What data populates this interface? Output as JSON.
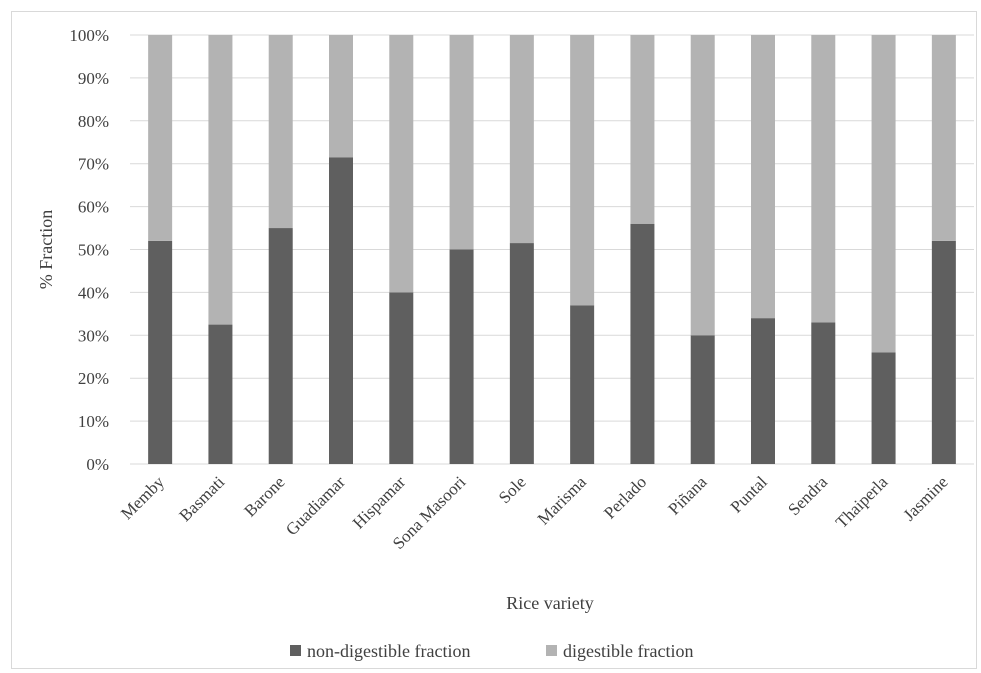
{
  "chart_data": {
    "type": "bar",
    "stacked": true,
    "normalized": true,
    "categories": [
      "Memby",
      "Basmati",
      "Barone",
      "Guadiamar",
      "Hispamar",
      "Sona Masoori",
      "Sole",
      "Marisma",
      "Perlado",
      "Piñana",
      "Puntal",
      "Sendra",
      "Thaiperla",
      "Jasmine"
    ],
    "series": [
      {
        "name": "non-digestible fraction",
        "color": "#5f5f5f",
        "values": [
          52,
          32.5,
          55,
          71.5,
          40,
          50,
          51.5,
          37,
          56,
          30,
          34,
          33,
          26,
          52
        ]
      },
      {
        "name": "digestible fraction",
        "color": "#b3b3b3",
        "values": [
          48,
          67.5,
          45,
          28.5,
          60,
          50,
          48.5,
          63,
          44,
          70,
          66,
          67,
          74,
          48
        ]
      }
    ],
    "xlabel": "Rice variety",
    "ylabel": "% Fraction",
    "ylim": [
      0,
      100
    ],
    "yticks": [
      "0%",
      "10%",
      "20%",
      "30%",
      "40%",
      "50%",
      "60%",
      "70%",
      "80%",
      "90%",
      "100%"
    ],
    "grid": true,
    "legend": "bottom"
  }
}
